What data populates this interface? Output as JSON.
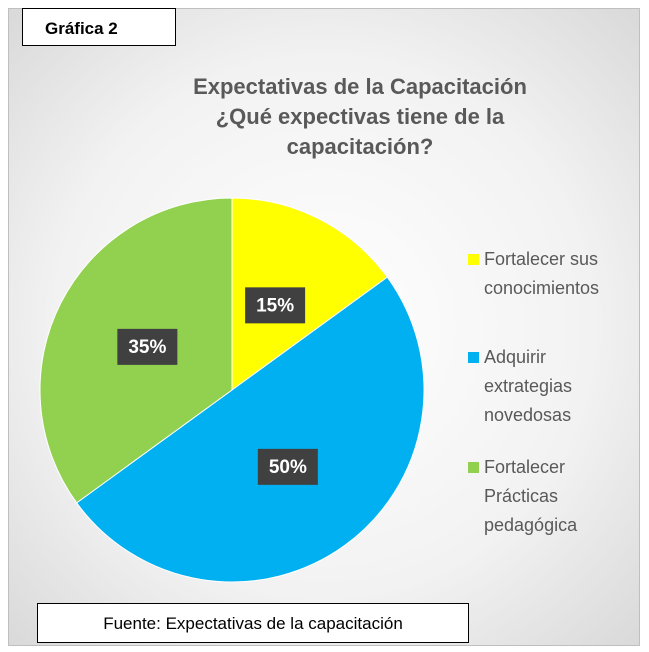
{
  "chart_data": {
    "type": "pie",
    "label": "Gráfica 2",
    "title": [
      "Expectativas de la Capacitación",
      "¿Qué expectivas tiene de la",
      "capacitación?"
    ],
    "categories": [
      "Fortalecer sus conocimientos",
      "Adquirir extrategias novedosas",
      "Fortalecer Prácticas pedagógica"
    ],
    "values": [
      15,
      50,
      35
    ],
    "value_labels": [
      "15%",
      "50%",
      "35%"
    ],
    "colors": [
      "#ffff00",
      "#00b0f0",
      "#92d050"
    ],
    "legend": "right",
    "source": "Fuente: Expectativas de la capacitación"
  }
}
